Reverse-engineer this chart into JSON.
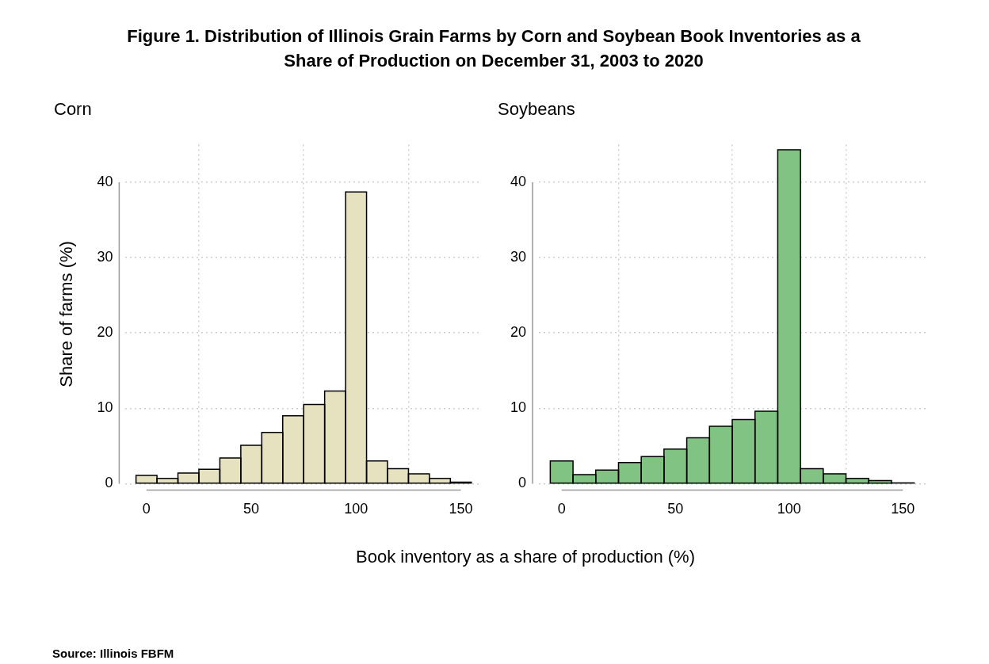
{
  "chart_data": [
    {
      "type": "histogram",
      "title": "Figure 1. Distribution of Illinois Grain Farms by Corn and Soybean Book Inventories as a Share of Production on December 31, 2003 to 2020",
      "subtitle": "Corn",
      "ylabel": "Share of farms (%)",
      "xlabel": "Book inventory as a share of production (%)",
      "annotations": [
        "Source: Illinois FBFM"
      ],
      "bins": [
        -5,
        5,
        15,
        25,
        35,
        45,
        55,
        65,
        75,
        85,
        95,
        105,
        115,
        125,
        135,
        145,
        155
      ],
      "values": [
        1.1,
        0.7,
        1.4,
        1.9,
        3.4,
        5.1,
        6.8,
        9.0,
        10.5,
        12.3,
        38.7,
        3.0,
        2.0,
        1.3,
        0.7,
        0.2
      ],
      "color": "#e6e2bf",
      "xlim": [
        -10,
        160
      ],
      "xticks": [
        0,
        50,
        100,
        150
      ],
      "ylim": [
        0,
        45
      ],
      "yticks": [
        0,
        10,
        20,
        30,
        40
      ],
      "grid": true
    },
    {
      "type": "histogram",
      "subtitle": "Soybeans",
      "bins": [
        -5,
        5,
        15,
        25,
        35,
        45,
        55,
        65,
        75,
        85,
        95,
        105,
        115,
        125,
        135,
        145,
        155
      ],
      "values": [
        3.0,
        1.2,
        1.8,
        2.8,
        3.6,
        4.6,
        6.1,
        7.6,
        8.5,
        9.6,
        44.3,
        2.0,
        1.3,
        0.7,
        0.4,
        0.1
      ],
      "color": "#80c383",
      "xlim": [
        -10,
        160
      ],
      "xticks": [
        0,
        50,
        100,
        150
      ],
      "ylim": [
        0,
        45
      ],
      "yticks": [
        0,
        10,
        20,
        30,
        40
      ],
      "grid": true
    }
  ]
}
